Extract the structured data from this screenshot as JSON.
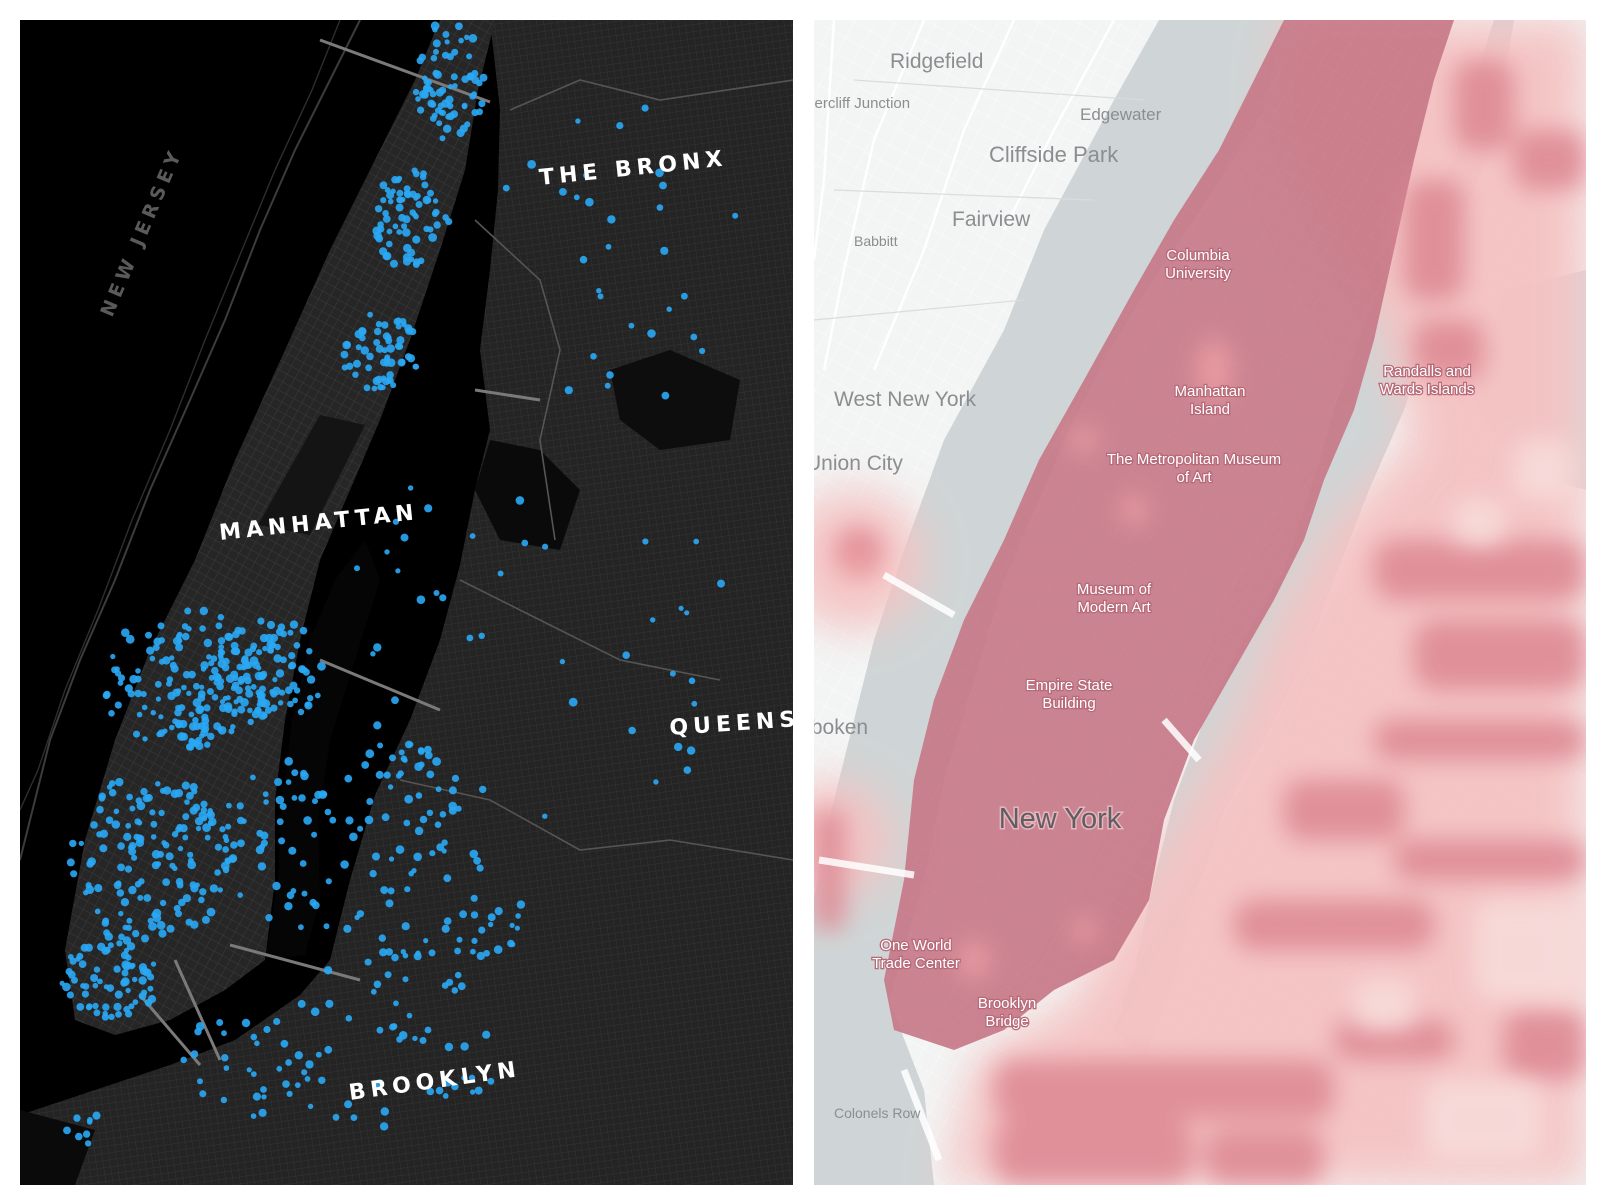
{
  "left_map": {
    "labels": {
      "new_jersey": "NEW JERSEY",
      "the_bronx": "THE BRONX",
      "manhattan": "MANHATTAN",
      "queens": "QUEENS",
      "brooklyn": "BROOKLYN"
    },
    "colors": {
      "background": "#000000",
      "land": "#222222",
      "streets": "#3a3a3a",
      "points": "#2aa8f5"
    }
  },
  "right_map": {
    "labels": {
      "ridgefield": "Ridgefield",
      "fiercliff_junction": "Fiercliff Junction",
      "edgewater": "Edgewater",
      "cliffside_park": "Cliffside Park",
      "fairview": "Fairview",
      "babbitt": "Babbitt",
      "west_new_york": "West New York",
      "union_city": "Union City",
      "hoboken": "Hoboken",
      "columbia_university": "Columbia University",
      "manhattan_island": "Manhattan Island",
      "met_museum": "The Metropolitan Museum of Art",
      "moma": "Museum of Modern Art",
      "empire_state": "Empire State Building",
      "new_york": "New York",
      "wtc": "One World Trade Center",
      "brooklyn_bridge": "Brooklyn Bridge",
      "colonels_row": "Colonels Row",
      "randalls": "Randalls and Wards Islands"
    },
    "colors": {
      "base": "#f2f3f3",
      "water": "#cfd5d6",
      "heat_low": "#f6c9c6",
      "heat_mid": "#e58a8f",
      "heat_high": "#b96b7e"
    }
  }
}
